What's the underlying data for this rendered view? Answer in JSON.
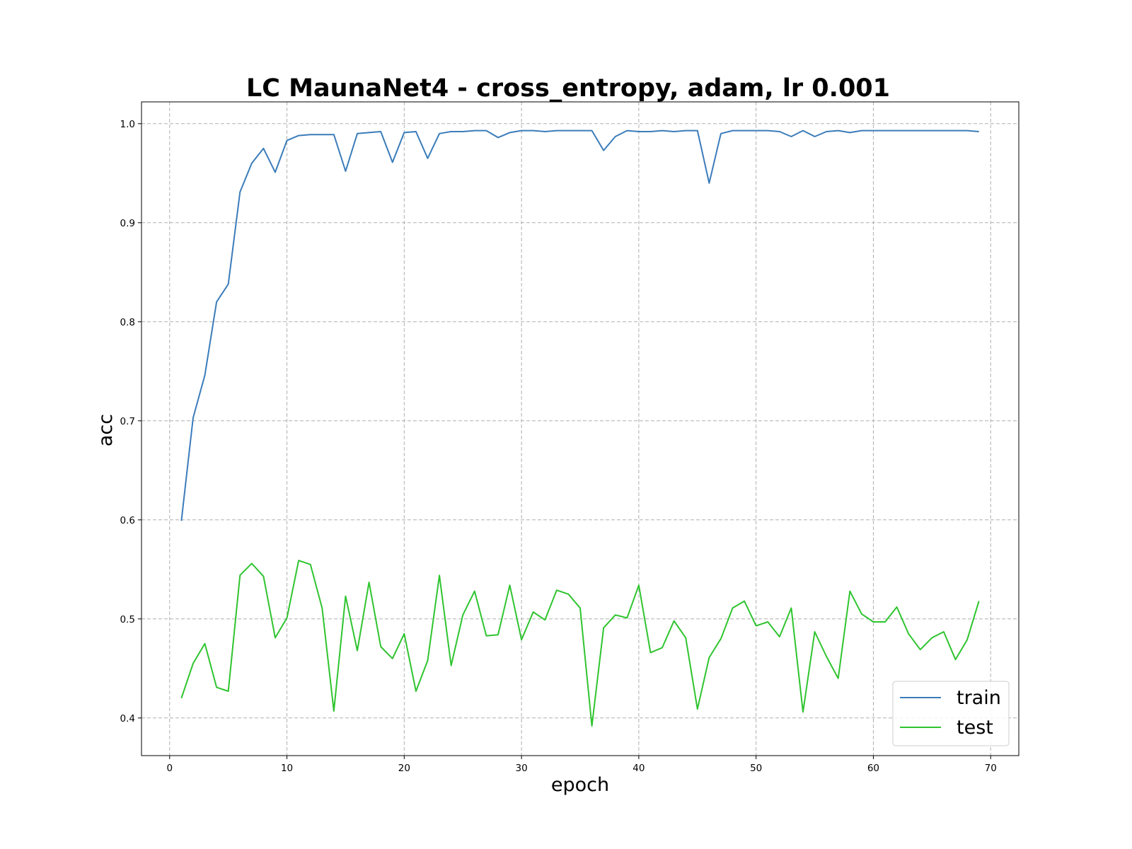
{
  "chart_data": {
    "type": "line",
    "title": "LC MaunaNet4 - cross_entropy, adam, lr 0.001",
    "xlabel": "epoch",
    "ylabel": "acc",
    "xlim": [
      -2.4,
      72.4
    ],
    "ylim": [
      0.362,
      1.022
    ],
    "xticks": [
      0,
      10,
      20,
      30,
      40,
      50,
      60,
      70
    ],
    "yticks": [
      0.4,
      0.5,
      0.6,
      0.7,
      0.8,
      0.9,
      1.0
    ],
    "xtick_labels": [
      "0",
      "10",
      "20",
      "30",
      "40",
      "50",
      "60",
      "70"
    ],
    "ytick_labels": [
      "0.4",
      "0.5",
      "0.6",
      "0.7",
      "0.8",
      "0.9",
      "1.0"
    ],
    "grid": true,
    "legend_position": "lower-right",
    "x": [
      1,
      2,
      3,
      4,
      5,
      6,
      7,
      8,
      9,
      10,
      11,
      12,
      13,
      14,
      15,
      16,
      17,
      18,
      19,
      20,
      21,
      22,
      23,
      24,
      25,
      26,
      27,
      28,
      29,
      30,
      31,
      32,
      33,
      34,
      35,
      36,
      37,
      38,
      39,
      40,
      41,
      42,
      43,
      44,
      45,
      46,
      47,
      48,
      49,
      50,
      51,
      52,
      53,
      54,
      55,
      56,
      57,
      58,
      59,
      60,
      61,
      62,
      63,
      64,
      65,
      66,
      67,
      68,
      69
    ],
    "series": [
      {
        "name": "train",
        "color": "#3b7cba",
        "values": [
          0.599,
          0.703,
          0.746,
          0.82,
          0.838,
          0.931,
          0.96,
          0.975,
          0.951,
          0.983,
          0.988,
          0.989,
          0.989,
          0.989,
          0.952,
          0.99,
          0.991,
          0.992,
          0.961,
          0.991,
          0.992,
          0.965,
          0.99,
          0.992,
          0.992,
          0.993,
          0.993,
          0.986,
          0.991,
          0.993,
          0.993,
          0.992,
          0.993,
          0.993,
          0.993,
          0.993,
          0.973,
          0.987,
          0.993,
          0.992,
          0.992,
          0.993,
          0.992,
          0.993,
          0.993,
          0.94,
          0.99,
          0.993,
          0.993,
          0.993,
          0.993,
          0.992,
          0.987,
          0.993,
          0.987,
          0.992,
          0.993,
          0.991,
          0.993,
          0.993,
          0.993,
          0.993,
          0.993,
          0.993,
          0.993,
          0.993,
          0.993,
          0.993,
          0.992
        ]
      },
      {
        "name": "test",
        "color": "#2fc42f",
        "values": [
          0.42,
          0.455,
          0.475,
          0.431,
          0.427,
          0.544,
          0.556,
          0.543,
          0.481,
          0.501,
          0.559,
          0.555,
          0.511,
          0.407,
          0.523,
          0.468,
          0.537,
          0.472,
          0.46,
          0.485,
          0.427,
          0.458,
          0.544,
          0.453,
          0.504,
          0.528,
          0.483,
          0.484,
          0.534,
          0.479,
          0.507,
          0.499,
          0.529,
          0.525,
          0.511,
          0.392,
          0.491,
          0.504,
          0.501,
          0.534,
          0.466,
          0.471,
          0.498,
          0.481,
          0.409,
          0.461,
          0.48,
          0.511,
          0.518,
          0.493,
          0.497,
          0.482,
          0.511,
          0.406,
          0.487,
          0.462,
          0.44,
          0.528,
          0.505,
          0.497,
          0.497,
          0.512,
          0.485,
          0.469,
          0.481,
          0.487,
          0.459,
          0.479,
          0.518
        ]
      }
    ]
  }
}
